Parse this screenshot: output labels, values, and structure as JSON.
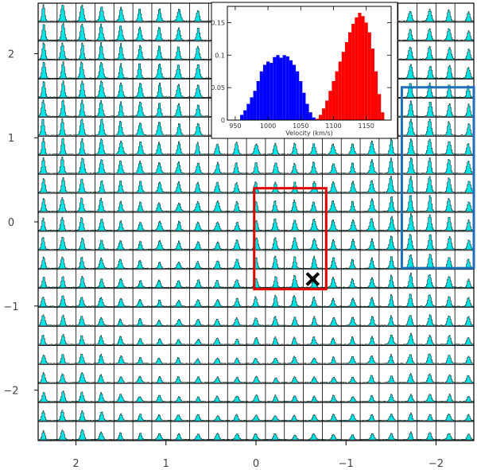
{
  "chart_data": [
    {
      "type": "line",
      "description_style": "spectral-grid",
      "grid": "on",
      "grid_columns": 23,
      "grid_rows": 23,
      "profile_fill_color": "#00e5e5",
      "profile_line_color": "#000000",
      "x_tick_labels": [
        "2",
        "1",
        "0",
        "−1",
        "−2"
      ],
      "x_tick_values": [
        2,
        1,
        0,
        -1,
        -2
      ],
      "y_tick_labels": [
        "2",
        "1",
        "0",
        "−1",
        "−2"
      ],
      "y_tick_values": [
        2,
        1,
        0,
        -1,
        -2
      ],
      "xlim": [
        2.42,
        -2.42
      ],
      "ylim": [
        -2.6,
        2.6
      ],
      "regions": [
        {
          "color": "#e00000",
          "x_range": [
            0.02,
            -0.78
          ],
          "y_range": [
            -0.8,
            0.4
          ]
        },
        {
          "color": "#1f6fb8",
          "x_range": [
            -1.62,
            -2.42
          ],
          "y_range": [
            -0.55,
            1.6
          ]
        }
      ],
      "marker": {
        "symbol": "x",
        "x": -0.63,
        "y": -0.68,
        "color": "#000000"
      }
    },
    {
      "type": "bar",
      "xlabel": "Velocity (km/s)",
      "x_tick_labels": [
        "950",
        "1000",
        "1050",
        "1100",
        "1150"
      ],
      "x_tick_values": [
        950,
        1000,
        1050,
        1100,
        1150
      ],
      "y_tick_labels": [
        "0",
        "0.05",
        "0.1",
        "0.15"
      ],
      "y_tick_values": [
        0,
        0.05,
        0.1,
        0.15
      ],
      "xlim": [
        938,
        1188
      ],
      "ylim": [
        0,
        0.175
      ],
      "series": [
        {
          "color": "#0000ff",
          "x": [
            960,
            965,
            970,
            975,
            980,
            985,
            990,
            995,
            1000,
            1005,
            1010,
            1015,
            1020,
            1025,
            1030,
            1035,
            1040,
            1045,
            1050,
            1055,
            1060,
            1065,
            1070
          ],
          "values": [
            0.008,
            0.015,
            0.025,
            0.035,
            0.045,
            0.06,
            0.075,
            0.085,
            0.09,
            0.088,
            0.097,
            0.1,
            0.096,
            0.1,
            0.098,
            0.092,
            0.085,
            0.075,
            0.06,
            0.042,
            0.025,
            0.012,
            0.004
          ]
        },
        {
          "color": "#ff0000",
          "x": [
            1075,
            1080,
            1085,
            1090,
            1095,
            1100,
            1105,
            1110,
            1115,
            1120,
            1125,
            1130,
            1135,
            1140,
            1145,
            1150,
            1155,
            1160,
            1165,
            1170,
            1175
          ],
          "values": [
            0.002,
            0.008,
            0.018,
            0.03,
            0.045,
            0.06,
            0.075,
            0.09,
            0.105,
            0.12,
            0.135,
            0.148,
            0.158,
            0.165,
            0.16,
            0.15,
            0.135,
            0.11,
            0.075,
            0.04,
            0.012
          ]
        }
      ]
    }
  ]
}
